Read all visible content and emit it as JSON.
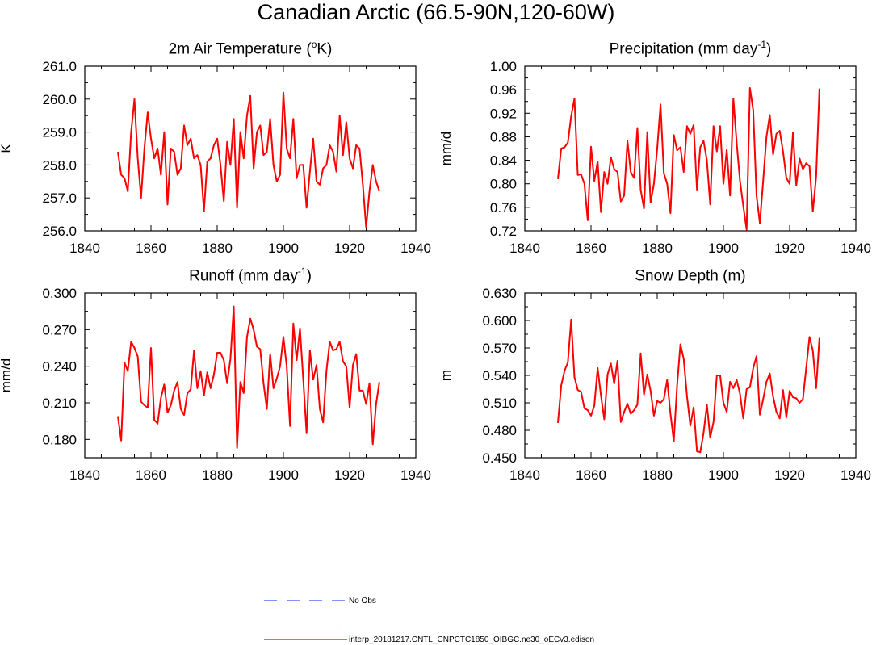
{
  "title": "Canadian Arctic (66.5-90N,120-60W)",
  "legend": [
    {
      "label": "No Obs",
      "color": "#3355ee",
      "dash": true
    },
    {
      "label": "interp_20181217.CNTL_CNPCTC1850_OIBGC.ne30_oECv3.edison",
      "color": "#ff0000",
      "dash": false
    }
  ],
  "chart_data": [
    {
      "type": "line",
      "title_main": "2m Air Temperature (",
      "title_sup": "o",
      "title_end": "K)",
      "ylabel": "K",
      "xlim": [
        1840,
        1940
      ],
      "ylim": [
        256.0,
        261.0
      ],
      "xticks": [
        "1840",
        "1860",
        "1880",
        "1900",
        "1920",
        "1940"
      ],
      "yticks": [
        "256.0",
        "257.0",
        "258.0",
        "259.0",
        "260.0",
        "261.0"
      ],
      "series": [
        {
          "name": "interp_20181217.CNTL_CNPCTC1850_OIBGC.ne30_oECv3.edison",
          "color": "#ff0000",
          "x_start": 1850,
          "values": [
            258.4,
            257.7,
            257.6,
            257.2,
            259.0,
            260.0,
            258.2,
            257.0,
            258.5,
            259.6,
            258.8,
            258.2,
            258.5,
            257.7,
            259.0,
            256.8,
            258.5,
            258.4,
            257.7,
            257.9,
            259.2,
            258.6,
            258.8,
            258.2,
            258.3,
            258.0,
            256.6,
            258.1,
            258.2,
            258.6,
            258.8,
            258.0,
            256.9,
            258.7,
            258.0,
            259.4,
            256.7,
            259.0,
            258.2,
            259.5,
            260.1,
            257.9,
            259.0,
            259.2,
            258.3,
            258.4,
            259.4,
            258.0,
            257.5,
            257.7,
            260.2,
            258.5,
            258.2,
            259.4,
            257.6,
            258.0,
            258.0,
            256.7,
            257.8,
            258.8,
            257.5,
            257.4,
            257.9,
            258.0,
            258.6,
            258.4,
            257.8,
            259.5,
            258.3,
            259.3,
            258.2,
            257.9,
            258.6,
            258.5,
            257.4,
            256.1,
            257.2,
            258.0,
            257.5,
            257.2
          ]
        }
      ]
    },
    {
      "type": "line",
      "title_main": "Precipitation (mm day",
      "title_sup": "-1",
      "title_end": ")",
      "ylabel": "mm/d",
      "xlim": [
        1840,
        1940
      ],
      "ylim": [
        0.72,
        1.0
      ],
      "xticks": [
        "1840",
        "1860",
        "1880",
        "1900",
        "1920",
        "1940"
      ],
      "yticks": [
        "0.72",
        "0.76",
        "0.80",
        "0.84",
        "0.88",
        "0.92",
        "0.96",
        "1.00"
      ],
      "series": [
        {
          "name": "interp_20181217.CNTL_CNPCTC1850_OIBGC.ne30_oECv3.edison",
          "color": "#ff0000",
          "x_start": 1850,
          "values": [
            0.808,
            0.86,
            0.862,
            0.87,
            0.915,
            0.945,
            0.815,
            0.816,
            0.8,
            0.738,
            0.863,
            0.805,
            0.838,
            0.752,
            0.82,
            0.8,
            0.845,
            0.825,
            0.82,
            0.77,
            0.78,
            0.873,
            0.82,
            0.81,
            0.895,
            0.79,
            0.758,
            0.888,
            0.768,
            0.8,
            0.86,
            0.935,
            0.818,
            0.8,
            0.75,
            0.883,
            0.857,
            0.862,
            0.82,
            0.898,
            0.885,
            0.9,
            0.79,
            0.862,
            0.873,
            0.84,
            0.765,
            0.898,
            0.855,
            0.898,
            0.8,
            0.858,
            0.78,
            0.945,
            0.87,
            0.805,
            0.762,
            0.722,
            0.963,
            0.925,
            0.78,
            0.733,
            0.805,
            0.88,
            0.917,
            0.85,
            0.885,
            0.89,
            0.855,
            0.81,
            0.8,
            0.887,
            0.797,
            0.843,
            0.825,
            0.835,
            0.83,
            0.753,
            0.812,
            0.962
          ]
        }
      ]
    },
    {
      "type": "line",
      "title_main": "Runoff (mm day",
      "title_sup": "-1",
      "title_end": ")",
      "ylabel": "mm/d",
      "xlim": [
        1840,
        1940
      ],
      "ylim": [
        0.165,
        0.3
      ],
      "xticks": [
        "1840",
        "1860",
        "1880",
        "1900",
        "1920",
        "1940"
      ],
      "yticks": [
        "0.180",
        "0.210",
        "0.240",
        "0.270",
        "0.300"
      ],
      "series": [
        {
          "name": "interp_20181217.CNTL_CNPCTC1850_OIBGC.ne30_oECv3.edison",
          "color": "#ff0000",
          "x_start": 1850,
          "values": [
            0.199,
            0.179,
            0.243,
            0.236,
            0.26,
            0.255,
            0.248,
            0.211,
            0.208,
            0.206,
            0.255,
            0.196,
            0.193,
            0.214,
            0.225,
            0.202,
            0.208,
            0.22,
            0.227,
            0.205,
            0.2,
            0.218,
            0.221,
            0.253,
            0.222,
            0.236,
            0.216,
            0.235,
            0.222,
            0.233,
            0.251,
            0.251,
            0.245,
            0.226,
            0.246,
            0.289,
            0.173,
            0.227,
            0.218,
            0.264,
            0.279,
            0.27,
            0.256,
            0.254,
            0.226,
            0.205,
            0.25,
            0.222,
            0.23,
            0.24,
            0.264,
            0.24,
            0.191,
            0.275,
            0.245,
            0.271,
            0.229,
            0.185,
            0.253,
            0.229,
            0.241,
            0.205,
            0.194,
            0.236,
            0.26,
            0.253,
            0.254,
            0.26,
            0.244,
            0.24,
            0.206,
            0.241,
            0.25,
            0.22,
            0.22,
            0.209,
            0.226,
            0.176,
            0.209,
            0.227
          ]
        }
      ]
    },
    {
      "type": "line",
      "title_main": "Snow Depth (m)",
      "title_sup": "",
      "title_end": "",
      "ylabel": "m",
      "xlim": [
        1840,
        1940
      ],
      "ylim": [
        0.45,
        0.63
      ],
      "xticks": [
        "1840",
        "1860",
        "1880",
        "1900",
        "1920",
        "1940"
      ],
      "yticks": [
        "0.450",
        "0.480",
        "0.510",
        "0.540",
        "0.570",
        "0.600",
        "0.630"
      ],
      "series": [
        {
          "name": "interp_20181217.CNTL_CNPCTC1850_OIBGC.ne30_oECv3.edison",
          "color": "#ff0000",
          "x_start": 1850,
          "values": [
            0.488,
            0.529,
            0.545,
            0.554,
            0.601,
            0.538,
            0.524,
            0.522,
            0.504,
            0.502,
            0.496,
            0.507,
            0.548,
            0.518,
            0.492,
            0.541,
            0.553,
            0.531,
            0.556,
            0.489,
            0.5,
            0.509,
            0.498,
            0.502,
            0.508,
            0.564,
            0.519,
            0.541,
            0.523,
            0.496,
            0.512,
            0.51,
            0.514,
            0.535,
            0.498,
            0.468,
            0.529,
            0.574,
            0.558,
            0.517,
            0.485,
            0.505,
            0.457,
            0.456,
            0.477,
            0.508,
            0.472,
            0.489,
            0.54,
            0.54,
            0.51,
            0.5,
            0.533,
            0.526,
            0.535,
            0.52,
            0.493,
            0.525,
            0.527,
            0.548,
            0.561,
            0.497,
            0.514,
            0.533,
            0.542,
            0.517,
            0.5,
            0.493,
            0.524,
            0.494,
            0.523,
            0.516,
            0.515,
            0.51,
            0.514,
            0.548,
            0.582,
            0.567,
            0.526,
            0.581
          ]
        }
      ]
    }
  ]
}
